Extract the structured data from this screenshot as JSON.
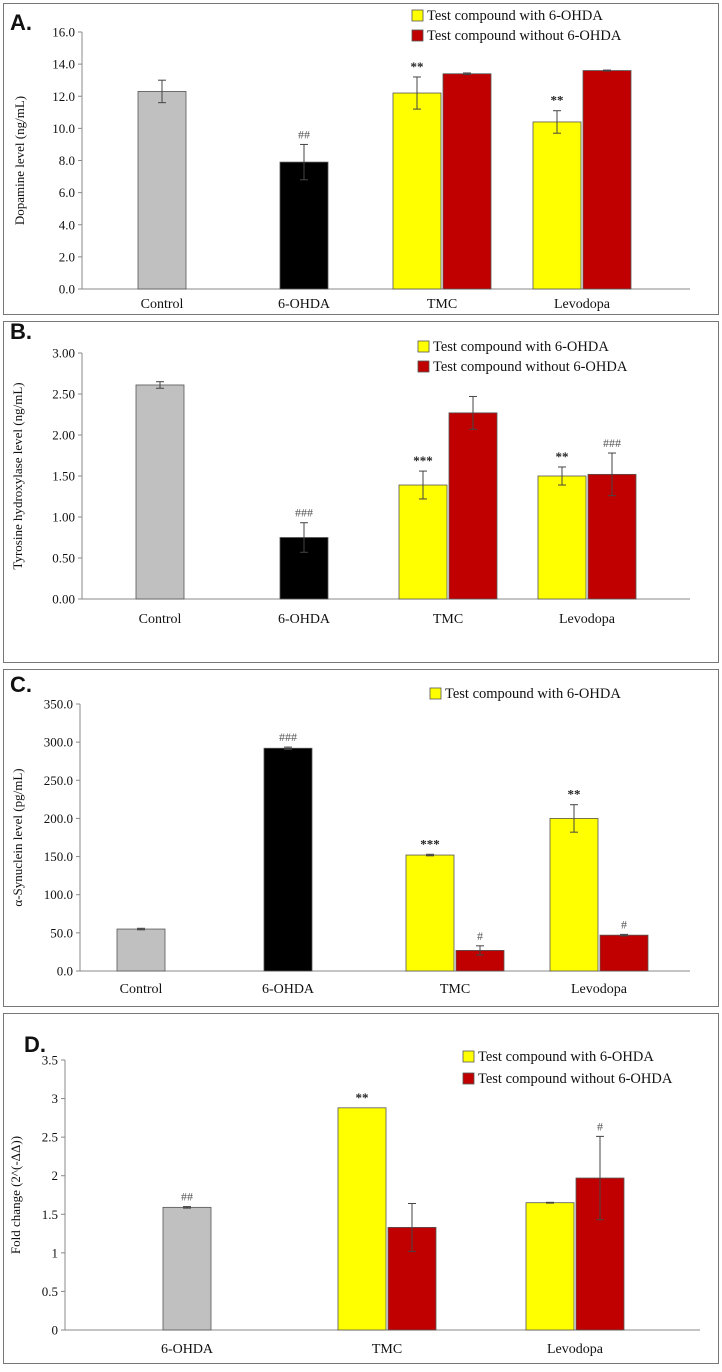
{
  "colors": {
    "control": "#c0c0c0",
    "ohda": "#000000",
    "with": "#ffff00",
    "without": "#c00000",
    "axis": "#888888",
    "border": "#777777"
  },
  "chart_data": [
    {
      "type": "bar",
      "letter": "A.",
      "ylabel": "Dopamine level (ng/mL)",
      "categories": [
        "Control",
        "6-OHDA",
        "TMC",
        "Levodopa"
      ],
      "yticks": [
        "0.0",
        "2.0",
        "4.0",
        "6.0",
        "8.0",
        "10.0",
        "12.0",
        "14.0",
        "16.0"
      ],
      "ylim": [
        0,
        16
      ],
      "legend": [
        "Test compound with 6-OHDA",
        "Test compound without 6-OHDA"
      ],
      "bars": [
        {
          "category": "Control",
          "slot": "single",
          "fill": "control",
          "value": 12.3,
          "err": 0.7,
          "label": ""
        },
        {
          "category": "6-OHDA",
          "slot": "single",
          "fill": "ohda",
          "value": 7.9,
          "err": 1.1,
          "label": "##"
        },
        {
          "category": "TMC",
          "slot": "left",
          "fill": "with",
          "value": 12.2,
          "err": 1.0,
          "label": "**"
        },
        {
          "category": "TMC",
          "slot": "right",
          "fill": "without",
          "value": 13.4,
          "err": 0.05,
          "label": ""
        },
        {
          "category": "Levodopa",
          "slot": "left",
          "fill": "with",
          "value": 10.4,
          "err": 0.7,
          "label": "**"
        },
        {
          "category": "Levodopa",
          "slot": "right",
          "fill": "without",
          "value": 13.6,
          "err": 0.03,
          "label": ""
        }
      ]
    },
    {
      "type": "bar",
      "letter": "B.",
      "ylabel": "Tyrosine hydroxylase level (ng/mL)",
      "categories": [
        "Control",
        "6-OHDA",
        "TMC",
        "Levodopa"
      ],
      "yticks": [
        "0.00",
        "0.50",
        "1.00",
        "1.50",
        "2.00",
        "2.50",
        "3.00"
      ],
      "ylim": [
        0,
        3
      ],
      "legend": [
        "Test compound with 6-OHDA",
        "Test compound without 6-OHDA"
      ],
      "bars": [
        {
          "category": "Control",
          "slot": "single",
          "fill": "control",
          "value": 2.61,
          "err": 0.04,
          "label": ""
        },
        {
          "category": "6-OHDA",
          "slot": "single",
          "fill": "ohda",
          "value": 0.75,
          "err": 0.18,
          "label": "###"
        },
        {
          "category": "TMC",
          "slot": "left",
          "fill": "with",
          "value": 1.39,
          "err": 0.17,
          "label": "***"
        },
        {
          "category": "TMC",
          "slot": "right",
          "fill": "without",
          "value": 2.27,
          "err": 0.2,
          "label": ""
        },
        {
          "category": "Levodopa",
          "slot": "left",
          "fill": "with",
          "value": 1.5,
          "err": 0.11,
          "label": "**"
        },
        {
          "category": "Levodopa",
          "slot": "right",
          "fill": "without",
          "value": 1.52,
          "err": 0.26,
          "label": "###"
        }
      ]
    },
    {
      "type": "bar",
      "letter": "C.",
      "ylabel": "α-Synuclein level (pg/mL)",
      "categories": [
        "Control",
        "6-OHDA",
        "TMC",
        "Levodopa"
      ],
      "yticks": [
        "0.0",
        "50.0",
        "100.0",
        "150.0",
        "200.0",
        "250.0",
        "300.0",
        "350.0"
      ],
      "ylim": [
        0,
        350
      ],
      "legend": [
        "Test compound with 6-OHDA"
      ],
      "bars": [
        {
          "category": "Control",
          "slot": "single",
          "fill": "control",
          "value": 55,
          "err": 1,
          "label": ""
        },
        {
          "category": "6-OHDA",
          "slot": "single",
          "fill": "ohda",
          "value": 292,
          "err": 1.5,
          "label": "###"
        },
        {
          "category": "TMC",
          "slot": "left",
          "fill": "with",
          "value": 152,
          "err": 1,
          "label": "***"
        },
        {
          "category": "TMC",
          "slot": "right",
          "fill": "without",
          "value": 27,
          "err": 6,
          "label": "#"
        },
        {
          "category": "Levodopa",
          "slot": "left",
          "fill": "with",
          "value": 200,
          "err": 18,
          "label": "**"
        },
        {
          "category": "Levodopa",
          "slot": "right",
          "fill": "without",
          "value": 47,
          "err": 1,
          "label": "#"
        }
      ]
    },
    {
      "type": "bar",
      "letter": "D.",
      "ylabel": "Fold change (2^(-ΔΔ))",
      "categories": [
        "6-OHDA",
        "TMC",
        "Levodopa"
      ],
      "yticks": [
        "0",
        "0.5",
        "1",
        "1.5",
        "2",
        "2.5",
        "3",
        "3.5"
      ],
      "ylim": [
        0,
        3.5
      ],
      "legend": [
        "Test compound with 6-OHDA",
        "Test compound without 6-OHDA"
      ],
      "bars": [
        {
          "category": "6-OHDA",
          "slot": "single",
          "fill": "control",
          "value": 1.59,
          "err": 0.01,
          "label": "##"
        },
        {
          "category": "TMC",
          "slot": "left",
          "fill": "with",
          "value": 2.88,
          "err": 0.0,
          "label": "**"
        },
        {
          "category": "TMC",
          "slot": "right",
          "fill": "without",
          "value": 1.33,
          "err": 0.31,
          "label": ""
        },
        {
          "category": "Levodopa",
          "slot": "left",
          "fill": "with",
          "value": 1.65,
          "err": 0.005,
          "label": ""
        },
        {
          "category": "Levodopa",
          "slot": "right",
          "fill": "without",
          "value": 1.97,
          "err": 0.54,
          "label": "#"
        }
      ]
    }
  ]
}
